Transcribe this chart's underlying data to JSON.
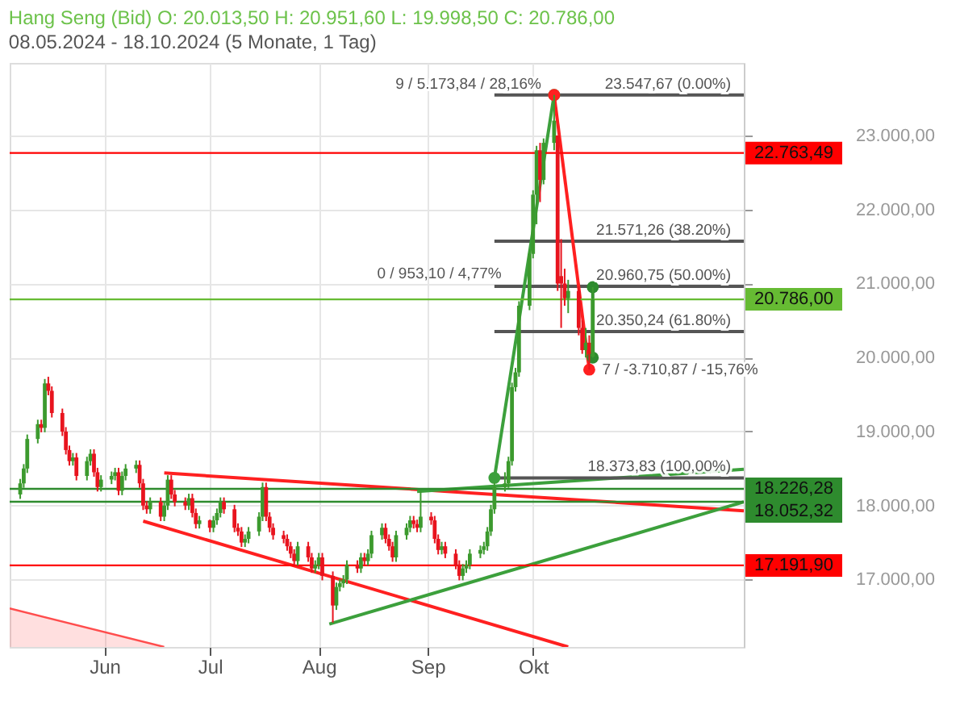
{
  "chart_data": {
    "type": "candlestick",
    "title": "Hang Seng (Bid)  O: 20.013,50  H: 20.951,60  L: 19.998,50  C: 20.786,00",
    "subtitle": "08.05.2024 - 18.10.2024  (5 Monate, 1 Tag)",
    "x": [
      "2024-05-08",
      "2024-05-09",
      "2024-05-10",
      "2024-05-13",
      "2024-05-14",
      "2024-05-15",
      "2024-05-16",
      "2024-05-17",
      "2024-05-20",
      "2024-05-21",
      "2024-05-22",
      "2024-05-23",
      "2024-05-24",
      "2024-05-27",
      "2024-05-28",
      "2024-05-29",
      "2024-05-30",
      "2024-05-31",
      "2024-06-03",
      "2024-06-04",
      "2024-06-05",
      "2024-06-06",
      "2024-06-07",
      "2024-06-10",
      "2024-06-11",
      "2024-06-12",
      "2024-06-13",
      "2024-06-14",
      "2024-06-17",
      "2024-06-18",
      "2024-06-19",
      "2024-06-20",
      "2024-06-21",
      "2024-06-24",
      "2024-06-25",
      "2024-06-26",
      "2024-06-27",
      "2024-06-28",
      "2024-07-01",
      "2024-07-02",
      "2024-07-03",
      "2024-07-04",
      "2024-07-05",
      "2024-07-08",
      "2024-07-09",
      "2024-07-10",
      "2024-07-11",
      "2024-07-12",
      "2024-07-15",
      "2024-07-16",
      "2024-07-17",
      "2024-07-18",
      "2024-07-19",
      "2024-07-22",
      "2024-07-23",
      "2024-07-24",
      "2024-07-25",
      "2024-07-26",
      "2024-07-29",
      "2024-07-30",
      "2024-07-31",
      "2024-08-01",
      "2024-08-02",
      "2024-08-05",
      "2024-08-06",
      "2024-08-07",
      "2024-08-08",
      "2024-08-09",
      "2024-08-12",
      "2024-08-13",
      "2024-08-14",
      "2024-08-15",
      "2024-08-16",
      "2024-08-19",
      "2024-08-20",
      "2024-08-21",
      "2024-08-22",
      "2024-08-23",
      "2024-08-26",
      "2024-08-27",
      "2024-08-28",
      "2024-08-29",
      "2024-08-30",
      "2024-09-02",
      "2024-09-03",
      "2024-09-04",
      "2024-09-05",
      "2024-09-06",
      "2024-09-09",
      "2024-09-10",
      "2024-09-11",
      "2024-09-12",
      "2024-09-13",
      "2024-09-16",
      "2024-09-17",
      "2024-09-18",
      "2024-09-19",
      "2024-09-20",
      "2024-09-23",
      "2024-09-24",
      "2024-09-25",
      "2024-09-26",
      "2024-09-27",
      "2024-09-30",
      "2024-10-01",
      "2024-10-02",
      "2024-10-03",
      "2024-10-04",
      "2024-10-07",
      "2024-10-08",
      "2024-10-09",
      "2024-10-10",
      "2024-10-11",
      "2024-10-14",
      "2024-10-15",
      "2024-10-16",
      "2024-10-17",
      "2024-10-18"
    ],
    "ohlc": [
      [
        18150,
        18360,
        18090,
        18300
      ],
      [
        18300,
        18560,
        18240,
        18500
      ],
      [
        18500,
        18960,
        18440,
        18900
      ],
      [
        18900,
        19160,
        18840,
        19100
      ],
      [
        19100,
        19160,
        18990,
        19050
      ],
      [
        19050,
        19710,
        18990,
        19650
      ],
      [
        19650,
        19740,
        19490,
        19550
      ],
      [
        19550,
        19610,
        19190,
        19250
      ],
      [
        19250,
        19310,
        18940,
        19000
      ],
      [
        19000,
        19060,
        18690,
        18750
      ],
      [
        18750,
        18810,
        18540,
        18600
      ],
      [
        18600,
        18710,
        18540,
        18650
      ],
      [
        18650,
        18710,
        18340,
        18400
      ],
      [
        18400,
        18660,
        18340,
        18600
      ],
      [
        18600,
        18760,
        18540,
        18700
      ],
      [
        18700,
        18760,
        18390,
        18450
      ],
      [
        18450,
        18510,
        18190,
        18250
      ],
      [
        18250,
        18410,
        18190,
        18350
      ],
      [
        18350,
        18460,
        18290,
        18400
      ],
      [
        18400,
        18510,
        18340,
        18450
      ],
      [
        18450,
        18510,
        18140,
        18200
      ],
      [
        18200,
        18460,
        18140,
        18400
      ],
      [
        18400,
        18560,
        18340,
        18500
      ],
      [
        18500,
        18610,
        18440,
        18550
      ],
      [
        18550,
        18610,
        18240,
        18300
      ],
      [
        18300,
        18360,
        17940,
        18000
      ],
      [
        18000,
        18060,
        17890,
        17950
      ],
      [
        17950,
        18110,
        17890,
        18050
      ],
      [
        18050,
        18110,
        17790,
        17850
      ],
      [
        17850,
        18060,
        17790,
        18000
      ],
      [
        18000,
        18410,
        17940,
        18350
      ],
      [
        18350,
        18410,
        18090,
        18150
      ],
      [
        18150,
        18210,
        17990,
        18050
      ],
      [
        18050,
        18110,
        17940,
        18000
      ],
      [
        18000,
        18160,
        17940,
        18100
      ],
      [
        18100,
        18160,
        17840,
        17900
      ],
      [
        17900,
        17960,
        17690,
        17750
      ],
      [
        17750,
        17860,
        17690,
        17800
      ],
      [
        17800,
        17810,
        17640,
        17700
      ],
      [
        17700,
        17860,
        17640,
        17800
      ],
      [
        17800,
        17960,
        17740,
        17900
      ],
      [
        17900,
        18110,
        17840,
        18050
      ],
      [
        18050,
        18110,
        17890,
        17950
      ],
      [
        17950,
        18010,
        17640,
        17700
      ],
      [
        17700,
        17760,
        17590,
        17650
      ],
      [
        17650,
        17710,
        17440,
        17500
      ],
      [
        17500,
        17610,
        17440,
        17550
      ],
      [
        17550,
        17710,
        17490,
        17650
      ],
      [
        17650,
        17910,
        17590,
        17850
      ],
      [
        17850,
        18310,
        17790,
        18250
      ],
      [
        18250,
        18310,
        17790,
        17850
      ],
      [
        17850,
        17910,
        17640,
        17700
      ],
      [
        17700,
        17760,
        17540,
        17600
      ],
      [
        17600,
        17660,
        17490,
        17550
      ],
      [
        17550,
        17610,
        17390,
        17450
      ],
      [
        17450,
        17510,
        17290,
        17350
      ],
      [
        17350,
        17410,
        17190,
        17250
      ],
      [
        17250,
        17510,
        17190,
        17450
      ],
      [
        17450,
        17510,
        17240,
        17300
      ],
      [
        17300,
        17360,
        17090,
        17150
      ],
      [
        17150,
        17260,
        17090,
        17200
      ],
      [
        17200,
        17360,
        17140,
        17300
      ],
      [
        17300,
        17360,
        16990,
        17050
      ],
      [
        17050,
        17110,
        16420,
        16650
      ],
      [
        16650,
        16960,
        16590,
        16900
      ],
      [
        16900,
        17010,
        16840,
        16950
      ],
      [
        16950,
        17060,
        16890,
        17000
      ],
      [
        17000,
        17260,
        16940,
        17200
      ],
      [
        17200,
        17260,
        17090,
        17150
      ],
      [
        17150,
        17360,
        17090,
        17300
      ],
      [
        17300,
        17360,
        17190,
        17250
      ],
      [
        17250,
        17410,
        17190,
        17350
      ],
      [
        17350,
        17660,
        17290,
        17600
      ],
      [
        17600,
        17760,
        17540,
        17700
      ],
      [
        17700,
        17760,
        17490,
        17550
      ],
      [
        17550,
        17610,
        17390,
        17450
      ],
      [
        17450,
        17510,
        17240,
        17300
      ],
      [
        17300,
        17660,
        17240,
        17600
      ],
      [
        17600,
        17760,
        17540,
        17700
      ],
      [
        17700,
        17860,
        17640,
        17800
      ],
      [
        17800,
        17860,
        17690,
        17750
      ],
      [
        17750,
        17810,
        17640,
        17700
      ],
      [
        17700,
        18200,
        17640,
        17850
      ],
      [
        17850,
        17910,
        17740,
        17800
      ],
      [
        17800,
        17860,
        17490,
        17550
      ],
      [
        17550,
        17610,
        17340,
        17400
      ],
      [
        17400,
        17510,
        17340,
        17450
      ],
      [
        17450,
        17510,
        17290,
        17350
      ],
      [
        17350,
        17410,
        17140,
        17200
      ],
      [
        17200,
        17260,
        16990,
        17050
      ],
      [
        17050,
        17210,
        16990,
        17150
      ],
      [
        17150,
        17260,
        17090,
        17200
      ],
      [
        17200,
        17410,
        17140,
        17350
      ],
      [
        17350,
        17460,
        17290,
        17400
      ],
      [
        17400,
        17510,
        17340,
        17450
      ],
      [
        17450,
        17710,
        17390,
        17650
      ],
      [
        17650,
        18010,
        17590,
        17950
      ],
      [
        17950,
        18310,
        17890,
        18250
      ],
      [
        18250,
        18450,
        18190,
        18300
      ],
      [
        18300,
        18660,
        18240,
        18600
      ],
      [
        18600,
        19660,
        18540,
        19600
      ],
      [
        19600,
        19860,
        19540,
        19800
      ],
      [
        19800,
        20760,
        19740,
        20700
      ],
      [
        20700,
        21460,
        20640,
        21400
      ],
      [
        21400,
        22260,
        21340,
        22200
      ],
      [
        22200,
        22860,
        21800,
        22800
      ],
      [
        22800,
        22900,
        22100,
        22400
      ],
      [
        22400,
        22960,
        22340,
        22900
      ],
      [
        22900,
        23547.67,
        22800,
        23200
      ],
      [
        23000,
        23000,
        20900,
        21000
      ],
      [
        21100,
        21600,
        20400,
        21000
      ],
      [
        21000,
        21200,
        20700,
        20800
      ],
      [
        20800,
        21050,
        20600,
        20900
      ],
      [
        20900,
        20960,
        20300,
        20400
      ],
      [
        20400,
        20500,
        20050,
        20100
      ],
      [
        20100,
        20400,
        20000,
        20200
      ],
      [
        20200,
        20300,
        19836.8,
        20050
      ],
      [
        20013.5,
        20951.6,
        19998.5,
        20786
      ]
    ],
    "colors": [
      "#3c9a2e",
      "#3c9a2e",
      "#3c9a2e",
      "#3c9a2e",
      "#e8141e",
      "#3c9a2e",
      "#e8141e",
      "#e8141e",
      "#e8141e",
      "#e8141e",
      "#e8141e",
      "#3c9a2e",
      "#e8141e",
      "#3c9a2e",
      "#3c9a2e",
      "#e8141e",
      "#e8141e",
      "#3c9a2e",
      "#3c9a2e",
      "#3c9a2e",
      "#e8141e",
      "#3c9a2e",
      "#3c9a2e",
      "#3c9a2e",
      "#e8141e",
      "#e8141e",
      "#e8141e",
      "#3c9a2e",
      "#e8141e",
      "#3c9a2e",
      "#3c9a2e",
      "#e8141e",
      "#e8141e",
      "#e8141e",
      "#3c9a2e",
      "#e8141e",
      "#e8141e",
      "#3c9a2e",
      "#e8141e",
      "#3c9a2e",
      "#3c9a2e",
      "#3c9a2e",
      "#e8141e",
      "#e8141e",
      "#e8141e",
      "#e8141e",
      "#3c9a2e",
      "#3c9a2e",
      "#3c9a2e",
      "#3c9a2e",
      "#e8141e",
      "#e8141e",
      "#e8141e",
      "#e8141e",
      "#e8141e",
      "#e8141e",
      "#e8141e",
      "#3c9a2e",
      "#e8141e",
      "#e8141e",
      "#3c9a2e",
      "#3c9a2e",
      "#e8141e",
      "#e8141e",
      "#3c9a2e",
      "#3c9a2e",
      "#3c9a2e",
      "#3c9a2e",
      "#e8141e",
      "#3c9a2e",
      "#e8141e",
      "#3c9a2e",
      "#3c9a2e",
      "#3c9a2e",
      "#e8141e",
      "#e8141e",
      "#e8141e",
      "#3c9a2e",
      "#3c9a2e",
      "#3c9a2e",
      "#e8141e",
      "#e8141e",
      "#3c9a2e",
      "#e8141e",
      "#e8141e",
      "#e8141e",
      "#3c9a2e",
      "#e8141e",
      "#e8141e",
      "#e8141e",
      "#3c9a2e",
      "#3c9a2e",
      "#3c9a2e",
      "#3c9a2e",
      "#3c9a2e",
      "#3c9a2e",
      "#3c9a2e",
      "#3c9a2e",
      "#3c9a2e",
      "#3c9a2e",
      "#3c9a2e",
      "#3c9a2e",
      "#3c9a2e",
      "#3c9a2e",
      "#3c9a2e",
      "#3c9a2e",
      "#e8141e",
      "#3c9a2e",
      "#3c9a2e",
      "#e8141e",
      "#e8141e",
      "#e8141e",
      "#3c9a2e",
      "#e8141e",
      "#e8141e",
      "#3c9a2e",
      "#e8141e",
      "#3c9a2e"
    ],
    "series": [
      {
        "type": "area",
        "color": "#ff4d4d",
        "x": [
          "2024-05-05",
          "2024-06-18"
        ],
        "values": [
          16610,
          16090
        ],
        "marker": "none"
      },
      {
        "type": "line",
        "color": "#ff2020",
        "x": [
          "2024-06-18",
          "2024-11-30"
        ],
        "values": [
          18440,
          17930
        ],
        "marker": "none"
      },
      {
        "type": "line",
        "color": "#ff2020",
        "x": [
          "2024-06-12",
          "2024-10-11"
        ],
        "values": [
          17790,
          16090
        ],
        "marker": "none"
      },
      {
        "type": "line",
        "color": "#3ca03c",
        "x": [
          "2024-08-29",
          "2024-11-30"
        ],
        "values": [
          18190,
          18490
        ],
        "marker": "none"
      },
      {
        "type": "line",
        "color": "#3ca03c",
        "x": [
          "2024-08-04",
          "2024-11-30"
        ],
        "values": [
          16400,
          18050
        ],
        "marker": "none"
      },
      {
        "type": "line",
        "color": "#555555",
        "x": [
          "2024-09-20",
          "2024-11-30"
        ],
        "values": [
          23547.67,
          23547.67
        ],
        "marker": "none"
      },
      {
        "type": "line",
        "color": "#555555",
        "x": [
          "2024-09-20",
          "2024-11-30"
        ],
        "values": [
          21571.26,
          21571.26
        ],
        "marker": "none"
      },
      {
        "type": "line",
        "color": "#555555",
        "x": [
          "2024-09-20",
          "2024-11-30"
        ],
        "values": [
          20960.75,
          20960.75
        ],
        "marker": "none"
      },
      {
        "type": "line",
        "color": "#555555",
        "x": [
          "2024-09-20",
          "2024-11-30"
        ],
        "values": [
          20350.24,
          20350.24
        ],
        "marker": "none"
      },
      {
        "type": "line",
        "color": "#555555",
        "x": [
          "2024-09-20",
          "2024-11-30"
        ],
        "values": [
          18373.83,
          18373.83
        ],
        "marker": "none"
      },
      {
        "type": "line",
        "color": "#3ca03c",
        "x": [
          "2024-09-20",
          "2024-10-07"
        ],
        "values": [
          18373.83,
          23547.67
        ],
        "marker": "circle"
      },
      {
        "type": "line",
        "color": "#ff2020",
        "x": [
          "2024-10-07",
          "2024-10-17"
        ],
        "values": [
          23547.67,
          19836.8
        ],
        "marker": "circle"
      },
      {
        "type": "line",
        "color": "#2e8b2e",
        "x": [
          "2024-10-18",
          "2024-10-18"
        ],
        "values": [
          19998.5,
          20951.6
        ],
        "marker": "circle"
      }
    ],
    "ref_lines": [
      {
        "axis": "y",
        "value": 22763.49,
        "label": "22.763,49",
        "color": "#ff0000"
      },
      {
        "axis": "y",
        "value": 20786.0,
        "label": "20.786,00",
        "color": "#66bb33"
      },
      {
        "axis": "y",
        "value": 18226.28,
        "label": "18.226,28",
        "color": "#2e8b2e"
      },
      {
        "axis": "y",
        "value": 18052.32,
        "label": "18.052,32",
        "color": "#2e8b2e"
      },
      {
        "axis": "y",
        "value": 17191.9,
        "label": "17.191,90",
        "color": "#ff0000"
      }
    ],
    "annotations": [
      {
        "text": "9 / 5.173,84 / 28,16%",
        "x": "2024-10-07",
        "y": 23547.67
      },
      "0 / 953,10 / 4,77%",
      {
        "text": "7 / -3.710,87 / -15,76%",
        "x": "2024-10-17",
        "y": 19836.8
      },
      {
        "text": "23.547,67 (0.00%)",
        "x": "2024-11-30",
        "y": 23547.67
      },
      {
        "text": "21.571,26 (38.20%)",
        "x": "2024-11-30",
        "y": 21571.26
      },
      {
        "text": "20.960,75 (50.00%)",
        "x": "2024-11-30",
        "y": 20960.75
      },
      {
        "text": "20.350,24 (61.80%)",
        "x": "2024-11-30",
        "y": 20350.24
      },
      {
        "text": "18.373,83 (100,00%)",
        "x": "2024-11-30",
        "y": 18373.83
      }
    ],
    "xlim": [
      "2024-05-05",
      "2024-11-30"
    ],
    "xticks": [
      {
        "value": "2024-06-01",
        "label": "Jun"
      },
      {
        "value": "2024-07-01",
        "label": "Jul"
      },
      {
        "value": "2024-08-01",
        "label": "Aug"
      },
      {
        "value": "2024-09-01",
        "label": "Sep"
      },
      {
        "value": "2024-10-01",
        "label": "Okt"
      }
    ],
    "ylim": [
      16090,
      23980
    ],
    "yticks": [
      {
        "value": 17000,
        "label": "17.000,00"
      },
      {
        "value": 18000,
        "label": "18.000,00"
      },
      {
        "value": 19000,
        "label": "19.000,00"
      },
      {
        "value": 20000,
        "label": "20.000,00"
      },
      {
        "value": 21000,
        "label": "21.000,00"
      },
      {
        "value": 22000,
        "label": "22.000,00"
      },
      {
        "value": 23000,
        "label": "23.000,00"
      }
    ],
    "grid": true
  }
}
